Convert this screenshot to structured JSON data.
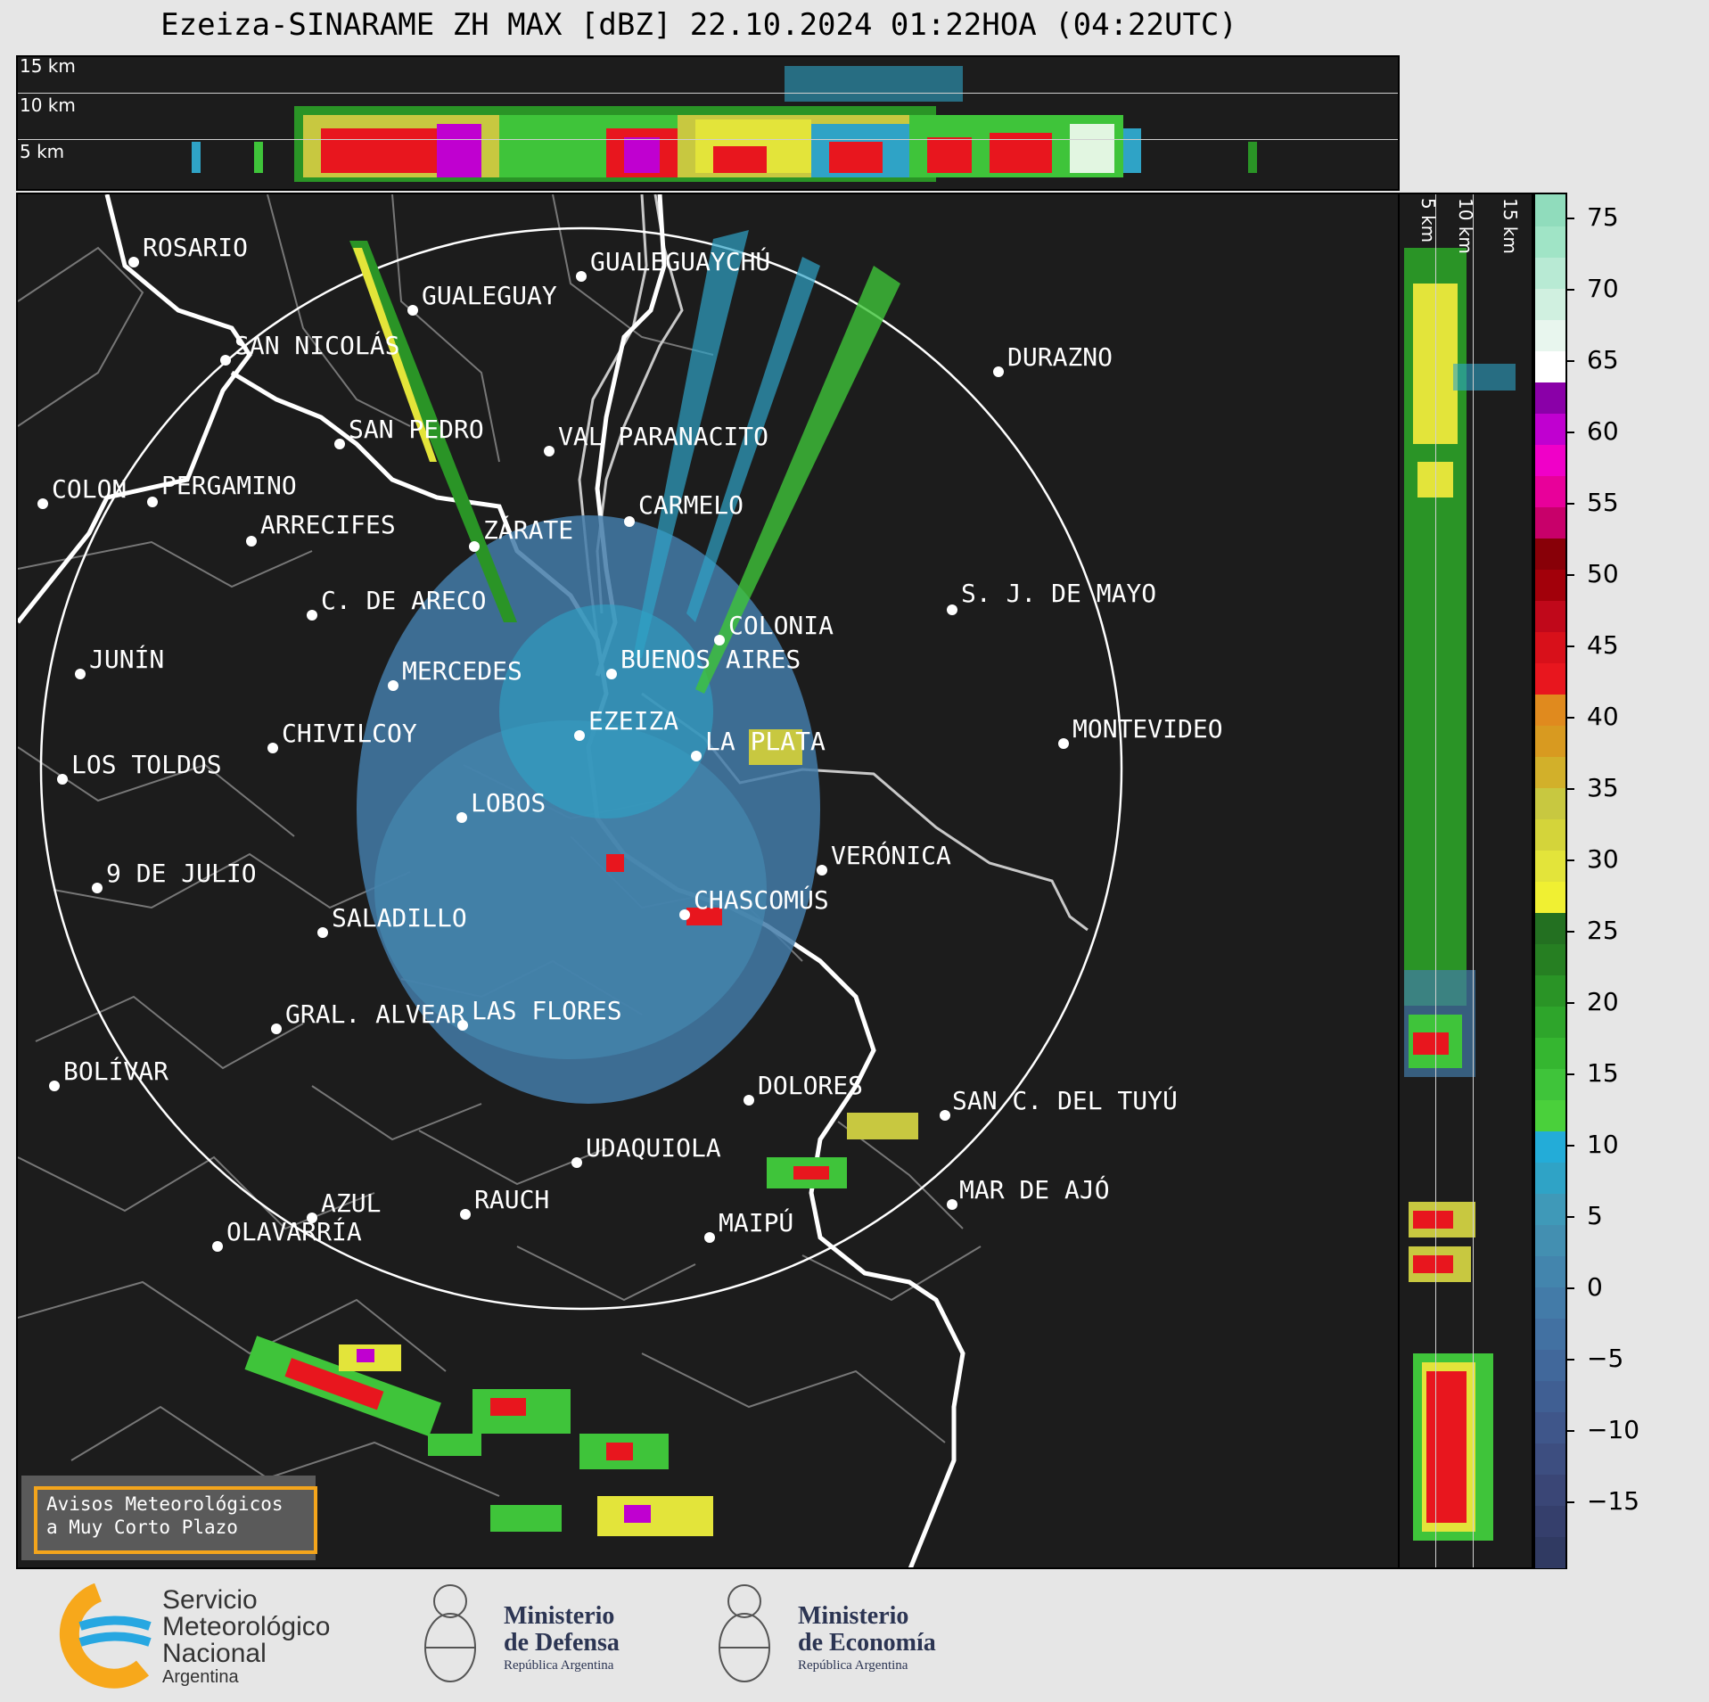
{
  "title": "Ezeiza-SINARAME ZH MAX [dBZ] 22.10.2024 01:22HOA (04:22UTC)",
  "height_labels": [
    "15 km",
    "10 km",
    "5 km"
  ],
  "cities": [
    {
      "name": "ROSARIO"
    },
    {
      "name": "GUALEGUAYCHÚ"
    },
    {
      "name": "GUALEGUAY"
    },
    {
      "name": "SAN NICOLÁS"
    },
    {
      "name": "DURAZNO"
    },
    {
      "name": "SAN PEDRO"
    },
    {
      "name": "VAL PARANACITO"
    },
    {
      "name": "COLON"
    },
    {
      "name": "PERGAMINO"
    },
    {
      "name": "CARMELO"
    },
    {
      "name": "ARRECIFES"
    },
    {
      "name": "ZÁRATE"
    },
    {
      "name": "S. J. DE MAYO"
    },
    {
      "name": "C. DE ARECO"
    },
    {
      "name": "COLONIA"
    },
    {
      "name": "JUNÍN"
    },
    {
      "name": "BUENOS AIRES"
    },
    {
      "name": "MERCEDES"
    },
    {
      "name": "EZEIZA"
    },
    {
      "name": "MONTEVIDEO"
    },
    {
      "name": "CHIVILCOY"
    },
    {
      "name": "LA PLATA"
    },
    {
      "name": "LOS TOLDOS"
    },
    {
      "name": "LOBOS"
    },
    {
      "name": "VERÓNICA"
    },
    {
      "name": "9 DE JULIO"
    },
    {
      "name": "CHASCOMÚS"
    },
    {
      "name": "SALADILLO"
    },
    {
      "name": "GRAL. ALVEAR"
    },
    {
      "name": "LAS FLORES"
    },
    {
      "name": "BOLÍVAR"
    },
    {
      "name": "DOLORES"
    },
    {
      "name": "SAN C. DEL TUYÚ"
    },
    {
      "name": "UDAQUIOLA"
    },
    {
      "name": "MAR DE AJÓ"
    },
    {
      "name": "RAUCH"
    },
    {
      "name": "AZUL"
    },
    {
      "name": "MAIPÚ"
    },
    {
      "name": "OLAVARRÍA"
    }
  ],
  "warning_box": {
    "line1": "Avisos Meteorológicos",
    "line2": "a Muy Corto Plazo"
  },
  "colorbar": {
    "ticks": [
      "75",
      "70",
      "65",
      "60",
      "55",
      "50",
      "45",
      "40",
      "35",
      "30",
      "25",
      "20",
      "15",
      "10",
      "5",
      "0",
      "−5",
      "−10",
      "−15"
    ],
    "colors": [
      "#303a62",
      "#353f6c",
      "#3a4676",
      "#3d4e80",
      "#3f568a",
      "#405f93",
      "#41689b",
      "#4271a2",
      "#437ba8",
      "#4385ad",
      "#438fb1",
      "#3f99b8",
      "#2fa3c6",
      "#23acd8",
      "#4ad03b",
      "#3fc43a",
      "#35b630",
      "#2ea52b",
      "#2a9426",
      "#267f22",
      "#237021",
      "#f0f032",
      "#e3e43a",
      "#d4d43a",
      "#c8c840",
      "#d2b02a",
      "#d89a20",
      "#e08a1e",
      "#e8161e",
      "#d8101a",
      "#c0081a",
      "#a2000a",
      "#880008",
      "#c8006a",
      "#e8009a",
      "#f000c8",
      "#c000d0",
      "#8a00a8",
      "#ffffff",
      "#e8f6ee",
      "#d0f0e0",
      "#b8ead4",
      "#a0e4c6",
      "#90dcbc"
    ]
  },
  "footer": {
    "smn": {
      "line1": "Servicio",
      "line2": "Meteorológico",
      "line3": "Nacional",
      "line4": "Argentina"
    },
    "defensa": {
      "line1": "Ministerio",
      "line2": "de Defensa",
      "line3": "República Argentina"
    },
    "economia": {
      "line1": "Ministerio",
      "line2": "de Economía",
      "line3": "República Argentina"
    }
  }
}
